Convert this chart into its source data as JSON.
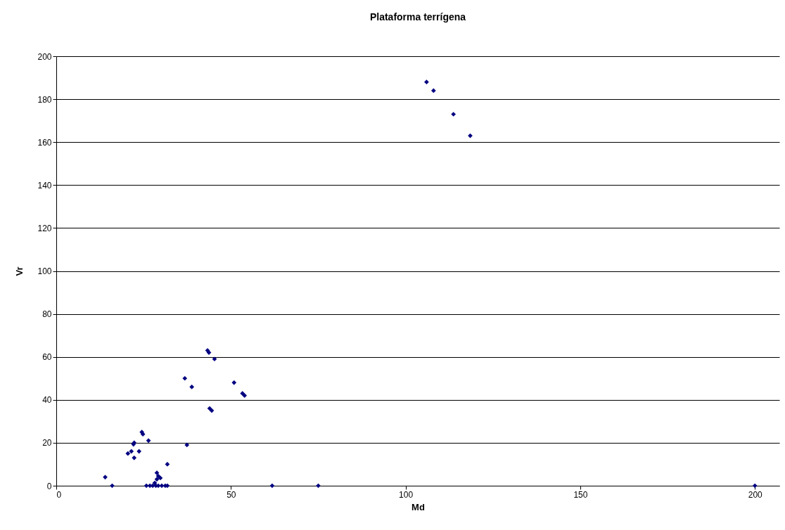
{
  "chart_data": {
    "type": "scatter",
    "title": "Plataforma terrígena",
    "xlabel": "Md",
    "ylabel": "Vr",
    "xlim": [
      0,
      207
    ],
    "xticks": [
      0,
      50,
      100,
      150,
      200
    ],
    "ylim": [
      0,
      200
    ],
    "yticks": [
      0,
      20,
      40,
      60,
      80,
      100,
      120,
      140,
      160,
      180,
      200
    ],
    "grid": "y",
    "marker": "diamond",
    "series": [
      {
        "color": "#000080",
        "x": [
          14,
          16,
          20.5,
          21.5,
          22.1,
          22.3,
          22.3,
          23.7,
          24.5,
          24.8,
          26.4,
          25.8,
          26.8,
          27.6,
          28.5,
          29.2,
          30.2,
          31.2,
          31.8,
          28.2,
          28.8,
          29.2,
          29.8,
          28.8,
          31.8,
          36.8,
          37.4,
          38.8,
          43.3,
          43.7,
          43.9,
          44.5,
          45.3,
          50.9,
          53.3,
          53.9,
          61.8,
          75,
          106,
          108,
          113.7,
          118.5,
          200
        ],
        "values": [
          4,
          0,
          15,
          16,
          19.3,
          20,
          13,
          16,
          25,
          24,
          21,
          0,
          0,
          0,
          0,
          0,
          0,
          0,
          0,
          1.3,
          3,
          4.5,
          3.6,
          6,
          10,
          50,
          19,
          46,
          63,
          62,
          36,
          35,
          59,
          48,
          43,
          42,
          0,
          0,
          188,
          184,
          173,
          163,
          0
        ]
      }
    ]
  }
}
